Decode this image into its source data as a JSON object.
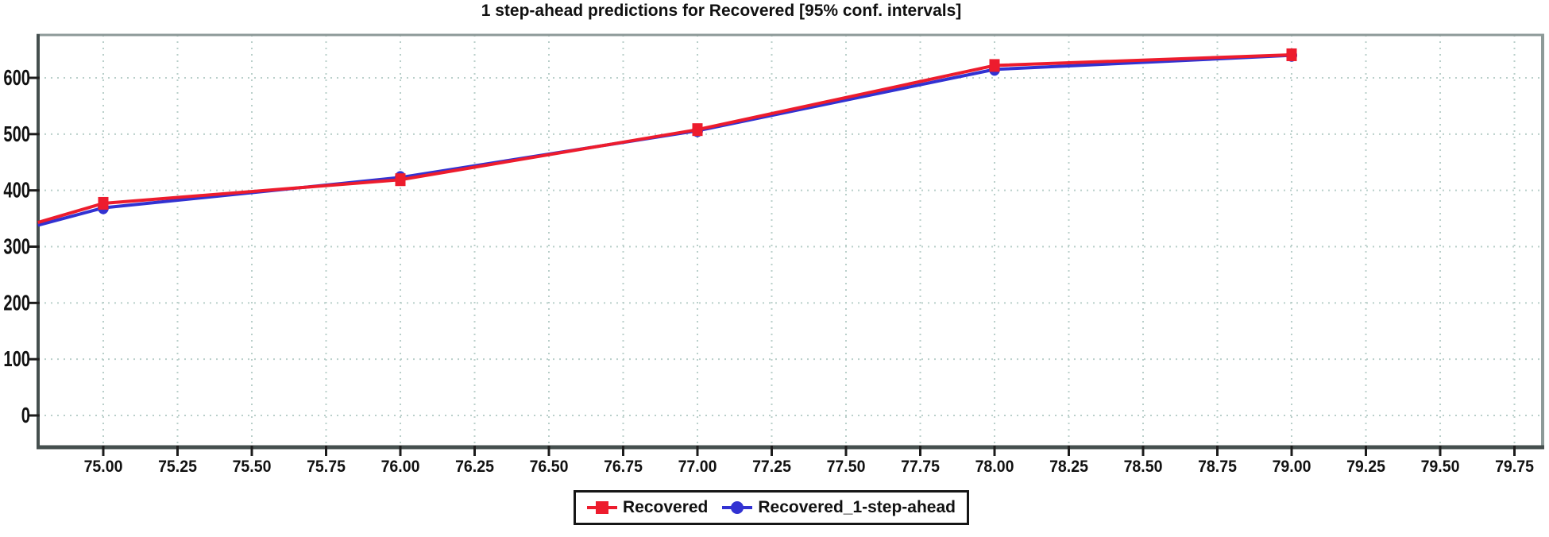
{
  "chart_data": {
    "type": "line",
    "title": "1 step-ahead predictions for Recovered [95% conf. intervals]",
    "xlabel": "",
    "ylabel": "",
    "xlim": [
      74.78,
      79.85
    ],
    "ylim": [
      -57,
      676
    ],
    "grid": "dotted",
    "legend_position": "bottom-center",
    "x_tick_values": [
      75.0,
      75.25,
      75.5,
      75.75,
      76.0,
      76.25,
      76.5,
      76.75,
      77.0,
      77.25,
      77.5,
      77.75,
      78.0,
      78.25,
      78.5,
      78.75,
      79.0,
      79.25,
      79.5,
      79.75
    ],
    "x_tick_labels": [
      "75.00",
      "75.25",
      "75.50",
      "75.75",
      "76.00",
      "76.25",
      "76.50",
      "76.75",
      "77.00",
      "77.25",
      "77.50",
      "77.75",
      "78.00",
      "78.25",
      "78.50",
      "78.75",
      "79.00",
      "79.25",
      "79.50",
      "79.75"
    ],
    "y_tick_values": [
      0,
      100,
      200,
      300,
      400,
      500,
      600
    ],
    "y_tick_labels": [
      "0",
      "100",
      "200",
      "300",
      "400",
      "500",
      "600"
    ],
    "series": [
      {
        "name": "Recovered_1-step-ahead",
        "color": "#3232d2",
        "marker": "circle",
        "points": [
          [
            74.78,
            338
          ],
          [
            75,
            369
          ],
          [
            76,
            423
          ],
          [
            77,
            506
          ],
          [
            78,
            615
          ],
          [
            79,
            640
          ]
        ]
      },
      {
        "name": "Recovered",
        "color": "#ed1c2d",
        "marker": "square",
        "points": [
          [
            74.78,
            343
          ],
          [
            75,
            377
          ],
          [
            76,
            419
          ],
          [
            77,
            508
          ],
          [
            78,
            622
          ],
          [
            79,
            641
          ]
        ]
      }
    ]
  },
  "legend": {
    "items": [
      {
        "label": "Recovered",
        "color": "#ed1c2d",
        "marker": "square"
      },
      {
        "label": "Recovered_1-step-ahead",
        "color": "#3232d2",
        "marker": "circle"
      }
    ]
  },
  "style": {
    "background": "#ffffff",
    "gridline_color": "#b9cfca",
    "border_color_light": "#8d9a98",
    "border_color_dark": "#454f4e",
    "tick_color": "#1c1c1c",
    "label_color": "#111111"
  }
}
